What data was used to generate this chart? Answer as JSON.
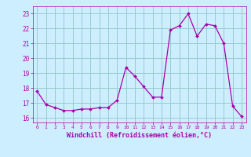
{
  "x": [
    0,
    1,
    2,
    3,
    4,
    5,
    6,
    7,
    8,
    9,
    10,
    11,
    12,
    13,
    14,
    15,
    16,
    17,
    18,
    19,
    20,
    21,
    22,
    23
  ],
  "y": [
    17.8,
    16.9,
    16.7,
    16.5,
    16.5,
    16.6,
    16.6,
    16.7,
    16.7,
    17.2,
    19.4,
    18.8,
    18.1,
    17.4,
    17.4,
    21.9,
    22.2,
    23.0,
    21.5,
    22.3,
    22.2,
    21.0,
    16.8,
    16.1
  ],
  "bg_color": "#cceeff",
  "line_color": "#aa00aa",
  "marker_color": "#aa00aa",
  "grid_color": "#99cccc",
  "xlabel": "Windchill (Refroidissement éolien,°C)",
  "xlabel_color": "#aa00aa",
  "tick_color": "#aa00aa",
  "ylim": [
    15.7,
    23.5
  ],
  "xlim": [
    -0.5,
    23.5
  ],
  "yticks": [
    16,
    17,
    18,
    19,
    20,
    21,
    22,
    23
  ],
  "xticks": [
    0,
    1,
    2,
    3,
    4,
    5,
    6,
    7,
    8,
    9,
    10,
    11,
    12,
    13,
    14,
    15,
    16,
    17,
    18,
    19,
    20,
    21,
    22,
    23
  ]
}
